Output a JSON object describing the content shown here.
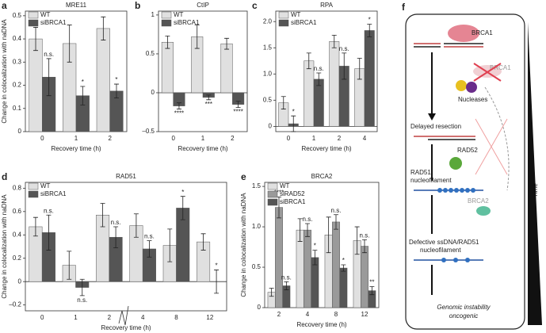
{
  "chart_data": [
    {
      "type": "bar",
      "panel": "a",
      "title": "MRE11",
      "ylabel": "Change in colocalization with naDNA",
      "xlabel": "Recovery time (h)",
      "categories": [
        "0",
        "1",
        "2"
      ],
      "series": [
        {
          "name": "WT",
          "color": "#e0e0e0",
          "values": [
            0.4,
            0.38,
            0.445
          ],
          "errors": [
            0.05,
            0.08,
            0.05
          ],
          "annotations": [
            null,
            null,
            null
          ]
        },
        {
          "name": "siBRCA1",
          "color": "#555555",
          "values": [
            0.235,
            0.155,
            0.175
          ],
          "errors": [
            0.08,
            0.04,
            0.03
          ],
          "annotations": [
            "n.s.",
            "*",
            "*"
          ]
        }
      ],
      "ylim": [
        0,
        0.52
      ],
      "yticks": [
        0,
        0.1,
        0.2,
        0.3,
        0.4,
        0.5
      ]
    },
    {
      "type": "bar",
      "panel": "b",
      "title": "CtIP",
      "xlabel": "Recovery time (h)",
      "categories": [
        "0",
        "1",
        "2"
      ],
      "series": [
        {
          "name": "WT",
          "color": "#e0e0e0",
          "values": [
            0.65,
            0.72,
            0.63
          ],
          "errors": [
            0.08,
            0.15,
            0.07
          ],
          "annotations": [
            null,
            null,
            null
          ]
        },
        {
          "name": "siBRCA1",
          "color": "#555555",
          "values": [
            -0.17,
            -0.06,
            -0.15
          ],
          "errors": [
            0.04,
            0.03,
            0.04
          ],
          "annotations": [
            "****",
            "***",
            "****"
          ]
        }
      ],
      "ylim": [
        -0.5,
        1.05
      ],
      "yticks": [
        {
          "value": -0.5,
          "label": "–0.5"
        },
        0,
        0.5,
        1
      ]
    },
    {
      "type": "bar",
      "panel": "c",
      "title": "RPA",
      "xlabel": "Recovery time (h)",
      "categories": [
        "0",
        "1",
        "2",
        "4"
      ],
      "series": [
        {
          "name": "WT",
          "color": "#e0e0e0",
          "values": [
            0.45,
            1.25,
            1.62,
            1.1
          ],
          "errors": [
            0.12,
            0.15,
            0.12,
            0.2
          ],
          "annotations": [
            null,
            null,
            null,
            null
          ]
        },
        {
          "name": "siBRCA1",
          "color": "#555555",
          "values": [
            0.05,
            0.9,
            1.15,
            1.83
          ],
          "errors": [
            0.15,
            0.12,
            0.25,
            0.12
          ],
          "annotations": [
            "*",
            "n.s.",
            "n.s.",
            "*"
          ]
        }
      ],
      "ylim": [
        -0.1,
        2.2
      ],
      "yticks": [
        0,
        0.5,
        {
          "value": 1.0,
          "label": "1.0"
        },
        1.5,
        {
          "value": 2.0,
          "label": "2.0"
        }
      ]
    },
    {
      "type": "bar",
      "panel": "d",
      "title": "RAD51",
      "ylabel": "Change in colocalization with naDNA",
      "xlabel": "Recovery time (h)",
      "categories": [
        "0",
        "1",
        "2",
        "4",
        "8",
        "12"
      ],
      "series": [
        {
          "name": "WT",
          "color": "#e0e0e0",
          "values": [
            0.47,
            0.14,
            0.57,
            0.48,
            0.31,
            0.34
          ],
          "errors": [
            0.08,
            0.12,
            0.1,
            0.1,
            0.14,
            0.07
          ],
          "annotations": [
            null,
            null,
            null,
            null,
            null,
            null
          ]
        },
        {
          "name": "siBRCA1",
          "color": "#555555",
          "values": [
            0.42,
            -0.05,
            0.38,
            0.28,
            0.63,
            0.0
          ],
          "errors": [
            0.15,
            0.07,
            0.09,
            0.07,
            0.1,
            0.1
          ],
          "annotations": [
            "n.s.",
            "n.s.",
            "n.s.",
            "n.s.",
            "*",
            "*"
          ]
        }
      ],
      "ylim": [
        -0.25,
        0.85
      ],
      "yticks": [
        {
          "value": -0.2,
          "label": "–0.2"
        },
        0,
        0.2,
        0.4,
        0.6,
        0.8
      ]
    },
    {
      "type": "bar",
      "panel": "e",
      "title": "BRCA2",
      "ylabel": "Change in colocalization with naDNA",
      "xlabel": "Recovery time (h)",
      "categories": [
        "2",
        "4",
        "8",
        "12"
      ],
      "series": [
        {
          "name": "WT",
          "color": "#e0e0e0",
          "values": [
            0.19,
            0.96,
            0.9,
            0.83
          ],
          "errors": [
            0.05,
            0.14,
            0.22,
            0.17
          ],
          "annotations": [
            null,
            null,
            null,
            null
          ]
        },
        {
          "name": "siRAD52",
          "color": "#9a9a9a",
          "values": [
            1.24,
            0.96,
            1.06,
            0.76
          ],
          "errors": [
            0.13,
            0.08,
            0.09,
            0.08
          ],
          "annotations": [
            "****",
            "n.s.",
            "n.s.",
            "n.s."
          ]
        },
        {
          "name": "siBRCA1",
          "color": "#555555",
          "values": [
            0.27,
            0.62,
            0.49,
            0.21
          ],
          "errors": [
            0.05,
            0.09,
            0.04,
            0.05
          ],
          "annotations": [
            "n.s.",
            "*",
            "*",
            "**"
          ]
        }
      ],
      "ylim": [
        0,
        1.55
      ],
      "yticks": [
        0,
        0.5,
        {
          "value": 1.0,
          "label": "1.0"
        },
        1.5
      ]
    }
  ],
  "diagram": {
    "panel": "f",
    "labels": {
      "brca1": "BRCA1",
      "brca1_lost": "BRCA1",
      "nucleases": "Nucleases",
      "delayed": "Delayed resection",
      "rad52": "RAD52",
      "rad51_1": "RAD51",
      "rad51_2": "nucleofilament",
      "brca2": "BRCA2",
      "defective_1": "Defective ssDNA/RAD51",
      "defective_2": "nucleofilament",
      "outcome_1": "Genomic instability",
      "outcome_2": "oncogenic",
      "time": "Time"
    }
  }
}
